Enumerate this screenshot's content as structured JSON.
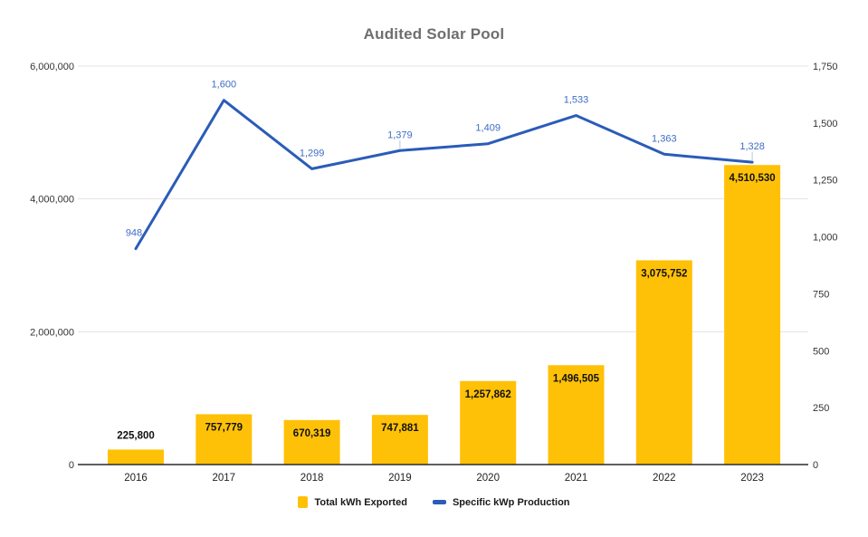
{
  "chart_data": {
    "type": "combo-bar-line",
    "title": "Audited Solar Pool",
    "categories": [
      "2016",
      "2017",
      "2018",
      "2019",
      "2020",
      "2021",
      "2022",
      "2023"
    ],
    "series": [
      {
        "name": "Total kWh Exported",
        "type": "bar",
        "axis": "left",
        "color": "#FFC107",
        "values": [
          225800,
          757779,
          670319,
          747881,
          1257862,
          1496505,
          3075752,
          4510530
        ],
        "labels": [
          "225,800",
          "757,779",
          "670,319",
          "747,881",
          "1,257,862",
          "1,496,505",
          "3,075,752",
          "4,510,530"
        ]
      },
      {
        "name": "Specific kWp Production",
        "type": "line",
        "axis": "right",
        "color": "#2A5CB8",
        "label_color": "#3E6CC7",
        "values": [
          948,
          1600,
          1299,
          1379,
          1409,
          1533,
          1363,
          1328
        ],
        "labels": [
          "948",
          "1,600",
          "1,299",
          "1,379",
          "1,409",
          "1,533",
          "1,363",
          "1,328"
        ]
      }
    ],
    "left_axis": {
      "min": 0,
      "max": 6000000,
      "step": 2000000,
      "tick_labels": [
        "0",
        "2,000,000",
        "4,000,000",
        "6,000,000"
      ]
    },
    "right_axis": {
      "min": 0,
      "max": 1750,
      "step": 250,
      "tick_labels": [
        "0",
        "250",
        "500",
        "750",
        "1,000",
        "1,250",
        "1,500",
        "1,750"
      ]
    },
    "grid": true,
    "legend_position": "bottom",
    "label_leader_indices": [
      3,
      7
    ],
    "colors": {
      "gridline": "#e3e3e3",
      "baseline": "#2b2b2b",
      "leader": "#b9c6e0"
    }
  }
}
